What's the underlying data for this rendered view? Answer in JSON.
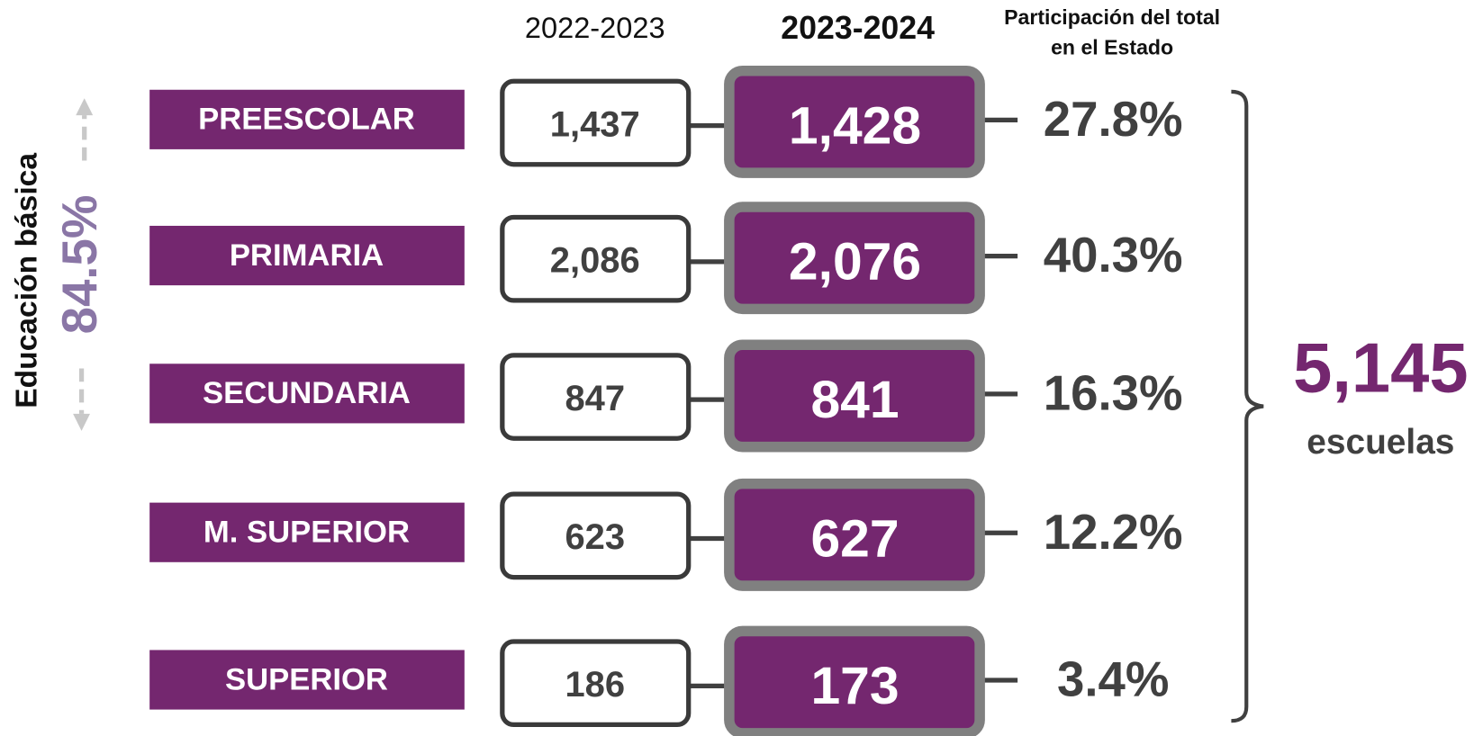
{
  "header": {
    "previous_year": "2022-2023",
    "current_year": "2023-2024",
    "share_title": [
      "Participación del total",
      "en el Estado"
    ]
  },
  "rows": [
    {
      "level": "PREESCOLAR",
      "previous": "1,437",
      "current": "1,428",
      "share": "27.8%"
    },
    {
      "level": "PRIMARIA",
      "previous": "2,086",
      "current": "2,076",
      "share": "40.3%"
    },
    {
      "level": "SECUNDARIA",
      "previous": "847",
      "current": "841",
      "share": "16.3%"
    },
    {
      "level": "M. SUPERIOR",
      "previous": "623",
      "current": "627",
      "share": "12.2%"
    },
    {
      "level": "SUPERIOR",
      "previous": "186",
      "current": "173",
      "share": "3.4%"
    }
  ],
  "basic_education": {
    "label": "Educación básica",
    "share": "84.5%"
  },
  "total": {
    "value": "5,145",
    "unit": "escuelas"
  }
}
